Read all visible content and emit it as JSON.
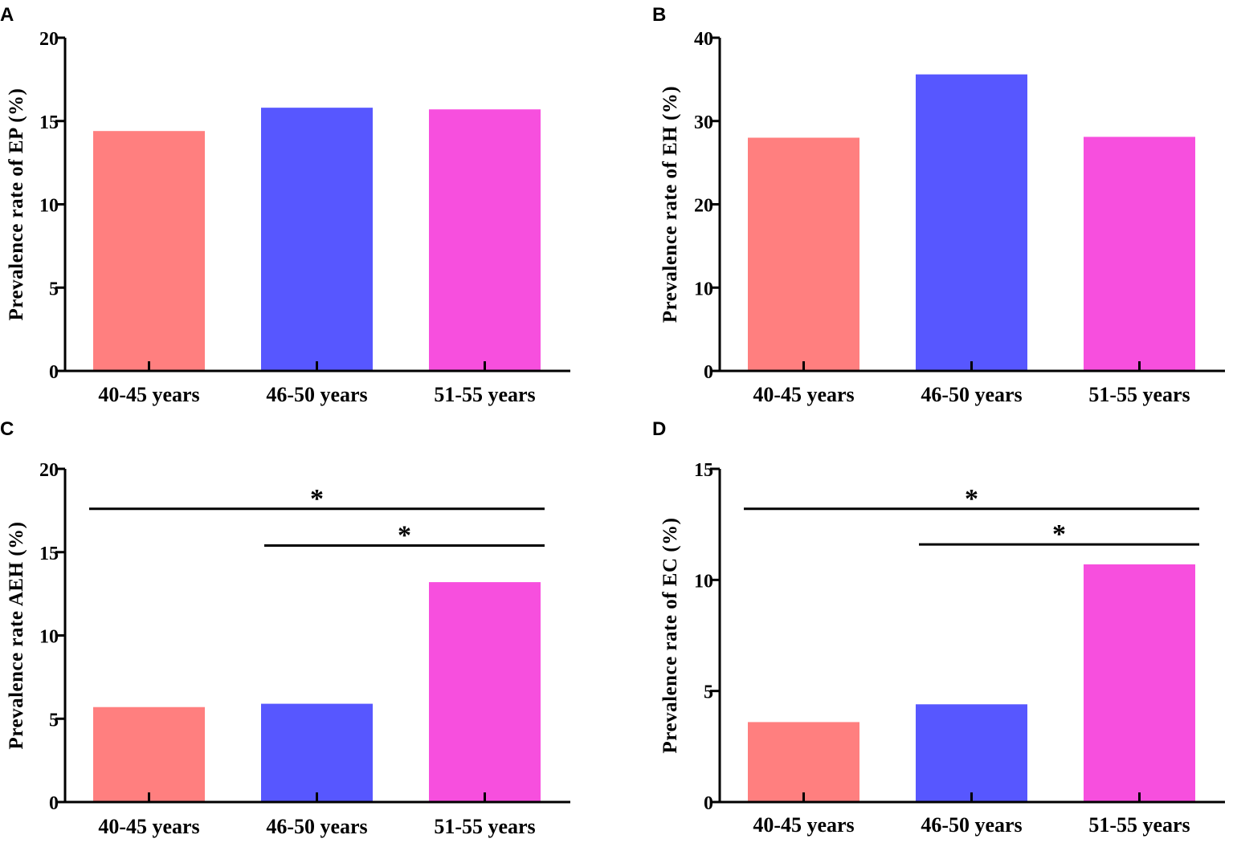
{
  "figure": {
    "colors": {
      "bar_1": "#FF7F7F",
      "bar_2": "#5757FF",
      "bar_3": "#F74FDE",
      "axis": "#000000"
    }
  },
  "chart_data": [
    {
      "panel": "A",
      "type": "bar",
      "title": "",
      "xlabel": "",
      "ylabel": "Prevalence rate of EP (%)",
      "categories": [
        "40-45 years",
        "46-50 years",
        "51-55 years"
      ],
      "values": [
        14.4,
        15.8,
        15.7
      ],
      "ylim": [
        0,
        20
      ],
      "yticks": [
        0,
        5,
        10,
        15,
        20
      ],
      "grid": false,
      "significance": []
    },
    {
      "panel": "B",
      "type": "bar",
      "title": "",
      "xlabel": "",
      "ylabel": "Prevalence rate of EH (%)",
      "categories": [
        "40-45 years",
        "46-50 years",
        "51-55 years"
      ],
      "values": [
        28.0,
        35.6,
        28.1
      ],
      "ylim": [
        0,
        40
      ],
      "yticks": [
        0,
        10,
        20,
        30,
        40
      ],
      "grid": false,
      "significance": []
    },
    {
      "panel": "C",
      "type": "bar",
      "title": "",
      "xlabel": "",
      "ylabel": "Prevalence rate AEH (%)",
      "categories": [
        "40-45 years",
        "46-50 years",
        "51-55 years"
      ],
      "values": [
        5.7,
        5.9,
        13.2
      ],
      "ylim": [
        0,
        20
      ],
      "yticks": [
        0,
        5,
        10,
        15,
        20
      ],
      "grid": false,
      "significance": [
        {
          "from": "40-45 years",
          "to": "51-55 years",
          "y": 17.6,
          "label": "*"
        },
        {
          "from": "46-50 years",
          "to": "51-55 years",
          "y": 15.4,
          "label": "*"
        }
      ]
    },
    {
      "panel": "D",
      "type": "bar",
      "title": "",
      "xlabel": "",
      "ylabel": "Prevalence rate of EC (%)",
      "categories": [
        "40-45 years",
        "46-50 years",
        "51-55 years"
      ],
      "values": [
        3.6,
        4.4,
        10.7
      ],
      "ylim": [
        0,
        15
      ],
      "yticks": [
        0,
        5,
        10,
        15
      ],
      "grid": false,
      "significance": [
        {
          "from": "40-45 years",
          "to": "51-55 years",
          "y": 13.2,
          "label": "*"
        },
        {
          "from": "46-50 years",
          "to": "51-55 years",
          "y": 11.6,
          "label": "*"
        }
      ]
    }
  ]
}
